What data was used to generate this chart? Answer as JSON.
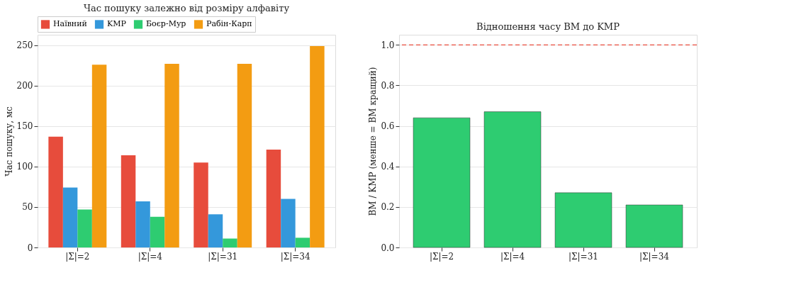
{
  "chart_data": [
    {
      "type": "bar",
      "title": "Час пошуку залежно від розміру алфавіту",
      "ylabel": "Час пошуку, мс",
      "categories": [
        "|Σ|=2",
        "|Σ|=4",
        "|Σ|=31",
        "|Σ|=34"
      ],
      "series": [
        {
          "name": "Наївний",
          "color": "#e74c3c",
          "values": [
            137,
            114,
            105,
            121
          ]
        },
        {
          "name": "KMP",
          "color": "#3498db",
          "values": [
            74,
            57,
            41,
            60
          ]
        },
        {
          "name": "Боєр-Мур",
          "color": "#2ecc71",
          "values": [
            47,
            38,
            11,
            12
          ]
        },
        {
          "name": "Рабін-Карп",
          "color": "#f39c12",
          "values": [
            226,
            227,
            227,
            249
          ]
        }
      ],
      "ylim": [
        0,
        263
      ],
      "yticks": [
        0,
        50,
        100,
        150,
        200,
        250
      ],
      "grid": "y",
      "legend": "top"
    },
    {
      "type": "bar",
      "title": "Відношення часу BM до KMP",
      "ylabel": "BM / KMP (менше = BM кращий)",
      "categories": [
        "|Σ|=2",
        "|Σ|=4",
        "|Σ|=31",
        "|Σ|=34"
      ],
      "series": [
        {
          "color": "#2ecc71",
          "values": [
            0.64,
            0.67,
            0.27,
            0.21
          ]
        }
      ],
      "ylim": [
        0,
        1.05
      ],
      "yticks": [
        {
          "value": 0,
          "label": "0.0"
        },
        0.2,
        0.4,
        0.6,
        0.8,
        {
          "value": 1,
          "label": "1.0"
        }
      ],
      "grid": "y",
      "ref_lines": [
        {
          "axis": "y",
          "value": 1.0,
          "color": "#e74c3c",
          "line_style": "dashed"
        }
      ]
    }
  ]
}
